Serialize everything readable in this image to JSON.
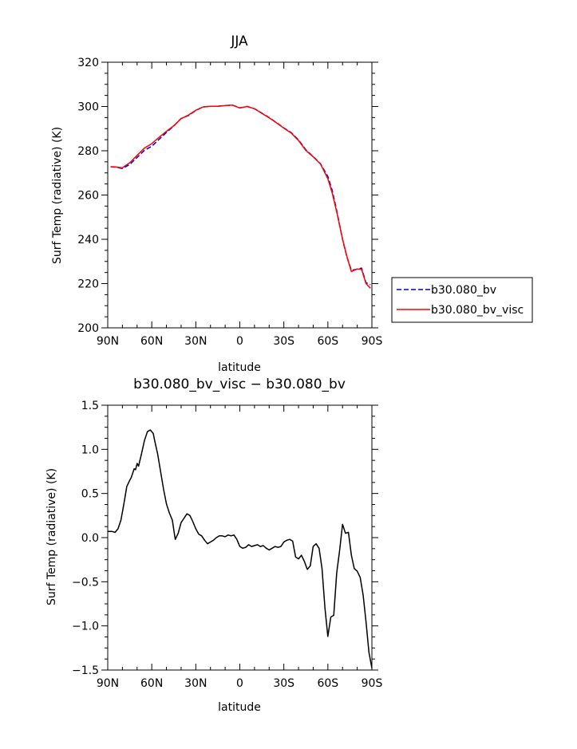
{
  "chart_data": [
    {
      "type": "line",
      "title": "JJA",
      "xlabel": "latitude",
      "ylabel": "Surf Temp (radiative) (K)",
      "xlim": [
        -90,
        90
      ],
      "ylim": [
        200,
        320
      ],
      "x_tick_values": [
        -90,
        -60,
        -30,
        0,
        30,
        60,
        90
      ],
      "x_tick_labels": [
        "90N",
        "60N",
        "30N",
        "0",
        "30S",
        "60S",
        "90S"
      ],
      "y_ticks": [
        200,
        220,
        240,
        260,
        280,
        300,
        320
      ],
      "grid": false,
      "legend": "right",
      "series": [
        {
          "name": "b30.080_bv",
          "color": "#0000cc",
          "dash": true,
          "x": [
            -88,
            -85,
            -80,
            -75,
            -70,
            -65,
            -60,
            -55,
            -50,
            -45,
            -40,
            -35,
            -30,
            -25,
            -20,
            -15,
            -10,
            -5,
            0,
            5,
            10,
            15,
            20,
            25,
            30,
            35,
            40,
            45,
            50,
            55,
            60,
            63,
            66,
            70,
            73,
            76,
            80,
            83,
            86,
            89
          ],
          "y": [
            272.7,
            272.6,
            272.0,
            273.8,
            277.0,
            280.2,
            282.0,
            285.2,
            288.3,
            291.2,
            294.6,
            295.9,
            298.2,
            299.8,
            300.1,
            300.1,
            300.4,
            300.6,
            299.4,
            300.0,
            299.0,
            297.0,
            295.0,
            292.7,
            290.3,
            288.2,
            284.9,
            280.4,
            277.4,
            274.1,
            268.4,
            262.0,
            253.0,
            240.0,
            232.0,
            226.0,
            226.5,
            227.0,
            220.4,
            219.5
          ]
        },
        {
          "name": "b30.080_bv_visc",
          "color": "#ff0000",
          "dash": false,
          "x": [
            -88,
            -85,
            -80,
            -75,
            -70,
            -65,
            -60,
            -55,
            -50,
            -45,
            -40,
            -35,
            -30,
            -25,
            -20,
            -15,
            -10,
            -5,
            0,
            5,
            10,
            15,
            20,
            25,
            30,
            35,
            40,
            45,
            50,
            55,
            60,
            63,
            66,
            70,
            73,
            76,
            80,
            83,
            86,
            89
          ],
          "y": [
            272.8,
            272.7,
            272.3,
            274.6,
            277.9,
            281.2,
            283.2,
            286.1,
            288.8,
            291.3,
            294.5,
            296.1,
            298.3,
            299.8,
            300.1,
            300.1,
            300.4,
            300.6,
            299.3,
            300.0,
            299.0,
            296.9,
            294.9,
            292.6,
            290.2,
            288.0,
            284.6,
            280.1,
            277.3,
            274.0,
            267.4,
            260.9,
            252.4,
            240.1,
            232.2,
            225.4,
            226.6,
            226.4,
            220.0,
            217.9
          ]
        }
      ]
    },
    {
      "type": "line",
      "title": "b30.080_bv_visc − b30.080_bv",
      "xlabel": "latitude",
      "ylabel": "Surf Temp (radiative) (K)",
      "xlim": [
        -90,
        90
      ],
      "ylim": [
        -1.5,
        1.5
      ],
      "x_tick_values": [
        -90,
        -60,
        -30,
        0,
        30,
        60,
        90
      ],
      "x_tick_labels": [
        "90N",
        "60N",
        "30N",
        "0",
        "30S",
        "60S",
        "90S"
      ],
      "y_ticks": [
        -1.5,
        -1.0,
        -0.5,
        0.0,
        0.5,
        1.0,
        1.5
      ],
      "y_tick_labels": [
        "−1.5",
        "−1.0",
        "−0.5",
        "0.0",
        "0.5",
        "1.0",
        "1.5"
      ],
      "grid": false,
      "series": [
        {
          "color": "#000000",
          "dash": false,
          "x": [
            -90,
            -87,
            -85,
            -83,
            -81,
            -79,
            -77,
            -75,
            -74,
            -72,
            -71,
            -70,
            -69,
            -67,
            -65,
            -63,
            -61,
            -59,
            -58,
            -56,
            -54,
            -52,
            -50,
            -48,
            -46,
            -44,
            -42,
            -40,
            -38,
            -36,
            -34,
            -32,
            -30,
            -28,
            -26,
            -24,
            -22,
            -20,
            -18,
            -16,
            -14,
            -12,
            -10,
            -8,
            -6,
            -4,
            -2,
            0,
            2,
            4,
            6,
            8,
            10,
            12,
            14,
            16,
            18,
            20,
            22,
            24,
            26,
            28,
            30,
            32,
            34,
            36,
            38,
            40,
            42,
            44,
            46,
            48,
            50,
            52,
            54,
            56,
            58,
            60,
            62,
            64,
            66,
            68,
            70,
            72,
            74,
            76,
            78,
            80,
            82,
            84,
            86,
            88,
            90
          ],
          "y": [
            0.07,
            0.07,
            0.06,
            0.1,
            0.2,
            0.38,
            0.58,
            0.65,
            0.68,
            0.78,
            0.77,
            0.84,
            0.81,
            0.95,
            1.1,
            1.2,
            1.22,
            1.18,
            1.1,
            0.95,
            0.75,
            0.55,
            0.38,
            0.28,
            0.2,
            -0.02,
            0.05,
            0.17,
            0.22,
            0.27,
            0.25,
            0.18,
            0.1,
            0.04,
            0.02,
            -0.03,
            -0.07,
            -0.05,
            -0.03,
            0.0,
            0.02,
            0.02,
            0.01,
            0.03,
            0.02,
            0.03,
            -0.02,
            -0.1,
            -0.12,
            -0.11,
            -0.08,
            -0.1,
            -0.09,
            -0.08,
            -0.1,
            -0.09,
            -0.12,
            -0.14,
            -0.12,
            -0.1,
            -0.11,
            -0.1,
            -0.05,
            -0.03,
            -0.02,
            -0.04,
            -0.22,
            -0.24,
            -0.2,
            -0.27,
            -0.36,
            -0.32,
            -0.1,
            -0.07,
            -0.12,
            -0.35,
            -0.8,
            -1.12,
            -0.9,
            -0.88,
            -0.4,
            -0.15,
            0.15,
            0.05,
            0.06,
            -0.2,
            -0.35,
            -0.38,
            -0.45,
            -0.65,
            -0.95,
            -1.3,
            -1.48
          ]
        }
      ]
    }
  ]
}
